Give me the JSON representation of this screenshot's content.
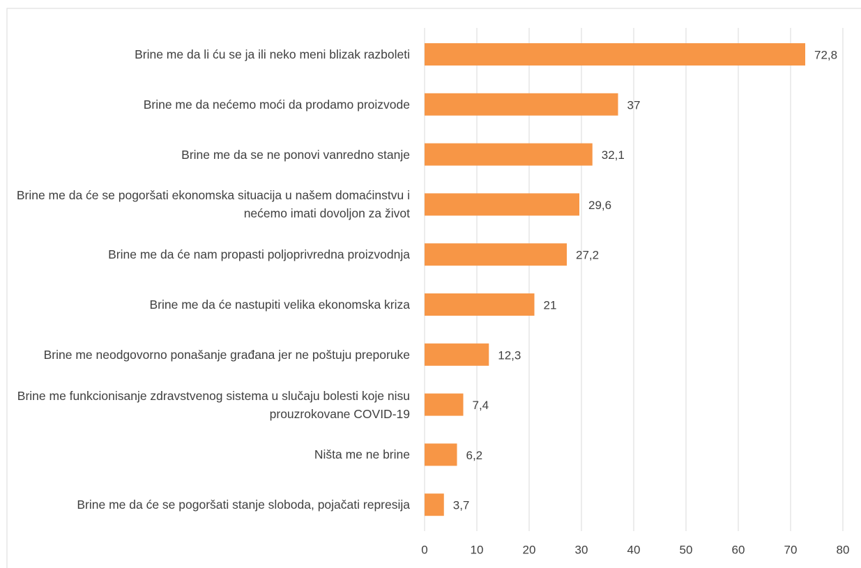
{
  "chart_data": {
    "type": "bar",
    "orientation": "horizontal",
    "categories": [
      "Brine me da li ću se ja ili neko meni blizak razboleti",
      "Brine me da nećemo moći da prodamo proizvode",
      "Brine me da se ne ponovi vanredno stanje",
      "Brine me da će se pogoršati ekonomska situacija u našem domaćinstvu i nećemo imati dovoljon za život",
      "Brine me da će nam propasti poljoprivredna proizvodnja",
      "Brine me da će nastupiti velika ekonomska kriza",
      "Brine me neodgovorno ponašanje građana jer ne poštuju preporuke",
      "Brine me funkcionisanje zdravstvenog sistema u slučaju bolesti koje nisu prouzrokovane COVID-19",
      "Ništa me ne brine",
      "Brine me da će se pogoršati stanje sloboda, pojačati represija"
    ],
    "values": [
      72.8,
      37,
      32.1,
      29.6,
      27.2,
      21,
      12.3,
      7.4,
      6.2,
      3.7
    ],
    "value_labels": [
      "72,8",
      "37",
      "32,1",
      "29,6",
      "27,2",
      "21",
      "12,3",
      "7,4",
      "6,2",
      "3,7"
    ],
    "color": "#f79646",
    "xlim": [
      0,
      80
    ],
    "xticks": [
      0,
      10,
      20,
      30,
      40,
      50,
      60,
      70,
      80
    ],
    "grid": true
  }
}
